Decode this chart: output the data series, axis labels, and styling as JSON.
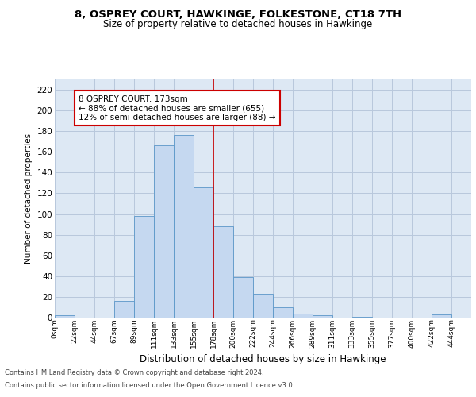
{
  "title": "8, OSPREY COURT, HAWKINGE, FOLKESTONE, CT18 7TH",
  "subtitle": "Size of property relative to detached houses in Hawkinge",
  "xlabel": "Distribution of detached houses by size in Hawkinge",
  "ylabel": "Number of detached properties",
  "bin_labels": [
    "0sqm",
    "22sqm",
    "44sqm",
    "67sqm",
    "89sqm",
    "111sqm",
    "133sqm",
    "155sqm",
    "178sqm",
    "200sqm",
    "222sqm",
    "244sqm",
    "266sqm",
    "289sqm",
    "311sqm",
    "333sqm",
    "355sqm",
    "377sqm",
    "400sqm",
    "422sqm",
    "444sqm"
  ],
  "bar_heights": [
    2,
    0,
    0,
    16,
    98,
    166,
    176,
    126,
    88,
    39,
    23,
    10,
    4,
    2,
    0,
    1,
    0,
    0,
    0,
    3,
    0
  ],
  "bar_color": "#c5d8f0",
  "bar_edge_color": "#5a96c8",
  "vline_index": 8,
  "annotation_text": "8 OSPREY COURT: 173sqm\n← 88% of detached houses are smaller (655)\n12% of semi-detached houses are larger (88) →",
  "annotation_box_color": "#ffffff",
  "annotation_box_edge_color": "#cc0000",
  "vline_color": "#cc0000",
  "grid_color": "#b8c8dc",
  "background_color": "#dde8f4",
  "ylim": [
    0,
    230
  ],
  "yticks": [
    0,
    20,
    40,
    60,
    80,
    100,
    120,
    140,
    160,
    180,
    200,
    220
  ],
  "footer_line1": "Contains HM Land Registry data © Crown copyright and database right 2024.",
  "footer_line2": "Contains public sector information licensed under the Open Government Licence v3.0."
}
